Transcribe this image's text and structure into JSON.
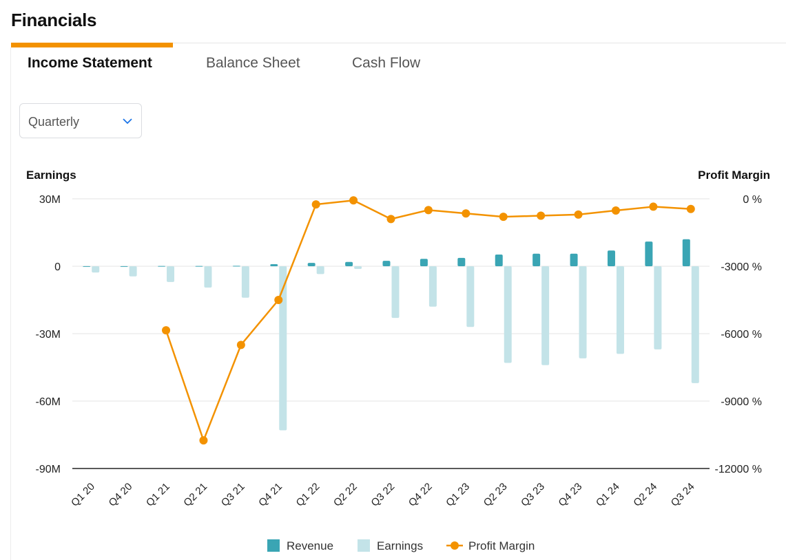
{
  "page": {
    "title": "Financials"
  },
  "tabs": [
    {
      "label": "Income Statement",
      "active": true
    },
    {
      "label": "Balance Sheet",
      "active": false
    },
    {
      "label": "Cash Flow",
      "active": false
    }
  ],
  "period_select": {
    "value": "Quarterly",
    "icon": "chevron-down-icon"
  },
  "colors": {
    "accent": "#f39200",
    "revenue": "#3aa5b4",
    "earnings": "#c3e3e8",
    "profit_margin": "#f39200"
  },
  "chart_data": {
    "type": "bar",
    "categories": [
      "Q1 20",
      "Q4 20",
      "Q1 21",
      "Q2 21",
      "Q3 21",
      "Q4 21",
      "Q1 22",
      "Q2 22",
      "Q3 22",
      "Q4 22",
      "Q1 23",
      "Q2 23",
      "Q3 23",
      "Q4 23",
      "Q1 24",
      "Q2 24",
      "Q3 24"
    ],
    "left_axis": {
      "title": "Earnings",
      "ticks": [
        "30M",
        "0",
        "-30M",
        "-60M",
        "-90M"
      ],
      "range": [
        -90,
        30
      ],
      "unit": "M"
    },
    "right_axis": {
      "title": "Profit Margin",
      "ticks": [
        "0 %",
        "-3000 %",
        "-6000 %",
        "-9000 %",
        "-12000 %"
      ],
      "range": [
        -12000,
        0
      ],
      "unit": "%"
    },
    "series": [
      {
        "name": "Revenue",
        "type": "bar",
        "axis": "left",
        "values": [
          0.05,
          0.05,
          0.1,
          0.1,
          0.2,
          0.9,
          1.5,
          1.9,
          2.4,
          3.3,
          3.7,
          5.2,
          5.6,
          5.6,
          7.0,
          11.0,
          12.0
        ]
      },
      {
        "name": "Earnings",
        "type": "bar",
        "axis": "left",
        "values": [
          -2.8,
          -4.5,
          -7.0,
          -9.5,
          -14.0,
          -73.0,
          -3.5,
          -1.2,
          -23.0,
          -18.0,
          -27.0,
          -43.0,
          -44.0,
          -41.0,
          -39.0,
          -37.0,
          -52.0
        ]
      },
      {
        "name": "Profit Margin",
        "type": "line",
        "axis": "right",
        "values": [
          null,
          null,
          -5850,
          -10750,
          -6500,
          -4500,
          -250,
          -70,
          -900,
          -500,
          -650,
          -800,
          -750,
          -700,
          -520,
          -350,
          -450
        ]
      }
    ],
    "legend": {
      "position": "bottom",
      "items": [
        "Revenue",
        "Earnings",
        "Profit Margin"
      ]
    },
    "grid": true
  }
}
